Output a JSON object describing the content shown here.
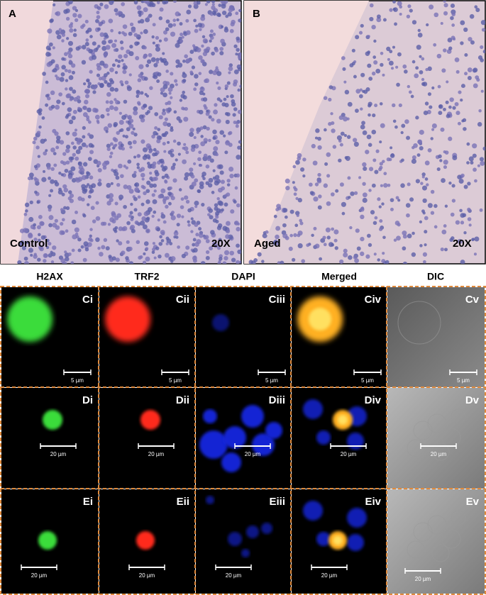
{
  "top_panels": [
    {
      "label": "A",
      "condition": "Control",
      "magnification": "20X"
    },
    {
      "label": "B",
      "condition": "Aged",
      "magnification": "20X"
    }
  ],
  "columns": [
    "H2AX",
    "TRF2",
    "DAPI",
    "Merged",
    "DIC"
  ],
  "rows": [
    {
      "labels": [
        "Ci",
        "Cii",
        "Ciii",
        "Civ",
        "Cv"
      ],
      "scale": "5 µm"
    },
    {
      "labels": [
        "Di",
        "Dii",
        "Diii",
        "Div",
        "Dv"
      ],
      "scale": "20 µm"
    },
    {
      "labels": [
        "Ei",
        "Eii",
        "Eiii",
        "Eiv",
        "Ev"
      ],
      "scale": "20 µm"
    }
  ]
}
